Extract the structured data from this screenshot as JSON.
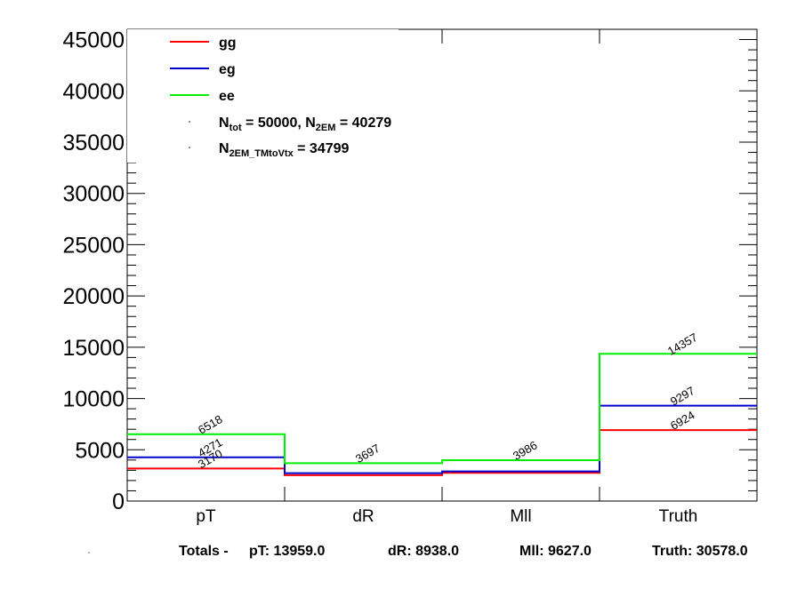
{
  "chart_data": {
    "type": "line",
    "categories": [
      "pT",
      "dR",
      "Mll",
      "Truth"
    ],
    "ylim": [
      0,
      46000
    ],
    "yticks": [
      0,
      5000,
      10000,
      15000,
      20000,
      25000,
      30000,
      35000,
      40000,
      45000
    ],
    "series": [
      {
        "name": "gg",
        "color": "#ff0000",
        "values": [
          3170,
          2528,
          2751,
          6924
        ],
        "labels": [
          "3170",
          "",
          "",
          "6924"
        ]
      },
      {
        "name": "eg",
        "color": "#0000cc",
        "values": [
          4271,
          2713,
          2890,
          9297
        ],
        "labels": [
          "4271",
          "",
          "",
          "9297"
        ]
      },
      {
        "name": "ee",
        "color": "#00ee00",
        "values": [
          6518,
          3697,
          3986,
          14357
        ],
        "labels": [
          "6518",
          "3697",
          "3986",
          "14357"
        ]
      }
    ],
    "legend_info": {
      "line1_parts": [
        "N",
        "tot",
        " = 50000, N",
        "2EM",
        " = 40279"
      ],
      "line2_parts": [
        "N",
        "2EM_TMtoVtx",
        "  = 34799"
      ]
    }
  },
  "totals": {
    "prefix": "Totals -",
    "pt": "pT: 13959.0",
    "dr": "dR: 8938.0",
    "mll": "Mll: 9627.0",
    "truth": "Truth: 30578.0"
  }
}
